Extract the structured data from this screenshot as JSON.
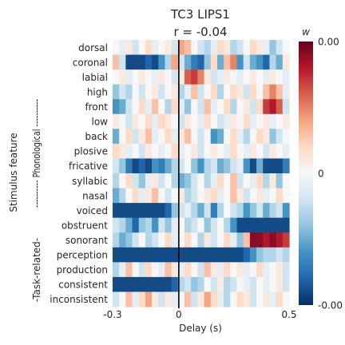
{
  "chart_data": {
    "type": "heatmap",
    "title": "TC3 LIPS1",
    "subtitle": "r = -0.04",
    "xlabel": "Delay (s)",
    "ylabel": "Stimulus feature",
    "group_labels": [
      {
        "label": "---------- Phonological ----------",
        "rows": [
          0,
          12
        ]
      },
      {
        "label": "-Task-related-",
        "rows": [
          13,
          16
        ]
      }
    ],
    "x_range": [
      -0.3,
      0.5
    ],
    "x_ticks": [
      {
        "value": -0.3,
        "label": "-0.3"
      },
      {
        "value": 0,
        "label": "0"
      },
      {
        "value": 0.5,
        "label": "0.5"
      }
    ],
    "vline_at": 0,
    "rows": [
      "dorsal",
      "coronal",
      "labial",
      "high",
      "front",
      "low",
      "back",
      "plosive",
      "fricative",
      "syllabic",
      "nasal",
      "voiced",
      "obstruent",
      "sonorant",
      "perception",
      "production",
      "consistent",
      "inconsistent"
    ],
    "columns": [
      "-0.30",
      "-0.27",
      "-0.24",
      "-0.21",
      "-0.18",
      "-0.15",
      "-0.12",
      "-0.09",
      "-0.06",
      "-0.03",
      "0.00",
      "0.03",
      "0.06",
      "0.09",
      "0.12",
      "0.15",
      "0.18",
      "0.21",
      "0.24",
      "0.27",
      "0.30",
      "0.33",
      "0.36",
      "0.39",
      "0.42",
      "0.45",
      "0.48"
    ],
    "values": [
      [
        0.0,
        -0.1,
        0.1,
        -0.2,
        0.0,
        0.2,
        -0.1,
        0.0,
        0.1,
        -0.2,
        0.4,
        0.3,
        0.0,
        -0.2,
        -0.3,
        -0.1,
        0.2,
        0.1,
        -0.3,
        -0.2,
        0.0,
        0.2,
        0.1,
        -0.1,
        -0.4,
        -0.2,
        0.0
      ],
      [
        0.3,
        -0.2,
        -0.9,
        -0.9,
        -0.9,
        -0.8,
        -0.9,
        -0.6,
        -0.3,
        0.4,
        -0.2,
        -0.5,
        -0.7,
        -0.8,
        -0.4,
        0.2,
        -0.5,
        0.3,
        0.5,
        -0.6,
        -0.2,
        -0.5,
        -0.6,
        -0.8,
        -0.3,
        -0.5,
        0.1
      ],
      [
        0.0,
        0.1,
        -0.1,
        0.0,
        0.1,
        0.0,
        -0.1,
        0.1,
        0.0,
        -0.2,
        0.1,
        0.6,
        0.7,
        0.5,
        0.1,
        -0.2,
        -0.1,
        0.1,
        0.0,
        -0.1,
        0.0,
        0.1,
        0.0,
        -0.1,
        0.1,
        0.0,
        -0.1
      ],
      [
        -0.4,
        -0.2,
        -0.3,
        0.0,
        -0.2,
        0.0,
        0.1,
        -0.2,
        0.0,
        0.1,
        -0.3,
        -0.1,
        0.3,
        -0.2,
        0.0,
        0.2,
        -0.3,
        0.0,
        0.2,
        0.1,
        -0.2,
        0.2,
        0.0,
        0.3,
        0.5,
        0.3,
        -0.1
      ],
      [
        -0.6,
        -0.5,
        -0.2,
        0.0,
        0.2,
        -0.1,
        0.3,
        0.0,
        -0.3,
        0.2,
        -0.1,
        -0.4,
        0.0,
        -0.2,
        0.3,
        -0.1,
        0.0,
        0.2,
        -0.3,
        0.0,
        0.1,
        -0.2,
        0.2,
        0.7,
        0.8,
        0.6,
        -0.2
      ],
      [
        0.1,
        0.0,
        -0.2,
        0.1,
        0.0,
        0.2,
        -0.1,
        0.2,
        0.1,
        0.0,
        -0.2,
        0.1,
        0.0,
        -0.1,
        0.2,
        0.0,
        -0.2,
        -0.1,
        0.1,
        0.0,
        0.2,
        -0.1,
        0.0,
        0.1,
        -0.1,
        0.0,
        0.1
      ],
      [
        -0.5,
        0.0,
        0.2,
        -0.2,
        0.1,
        0.3,
        -0.1,
        0.0,
        0.2,
        -0.1,
        0.1,
        0.3,
        0.0,
        -0.2,
        0.0,
        -0.6,
        -0.5,
        0.0,
        0.2,
        -0.1,
        -0.3,
        0.0,
        0.2,
        0.1,
        -0.4,
        -0.2,
        0.0
      ],
      [
        0.2,
        0.1,
        -0.1,
        0.0,
        -0.2,
        0.1,
        0.0,
        -0.1,
        0.0,
        0.2,
        -0.1,
        0.0,
        0.1,
        -0.2,
        0.0,
        0.1,
        0.0,
        -0.1,
        0.2,
        0.0,
        -0.1,
        0.1,
        0.0,
        -0.2,
        0.1,
        0.0,
        -0.1
      ],
      [
        -0.2,
        -0.4,
        -0.7,
        -0.9,
        -0.8,
        -0.9,
        -0.6,
        -0.7,
        -0.5,
        -0.3,
        -0.2,
        0.0,
        -0.4,
        -0.6,
        -0.3,
        -0.2,
        -0.5,
        -0.4,
        -0.2,
        -0.1,
        -0.6,
        -0.9,
        -0.5,
        -0.9,
        -0.9,
        -0.9,
        -0.7
      ],
      [
        -0.3,
        0.0,
        0.2,
        -0.2,
        -0.4,
        -0.1,
        0.1,
        -0.2,
        0.0,
        -0.3,
        -0.5,
        -0.4,
        -0.2,
        0.0,
        -0.3,
        -0.1,
        0.2,
        0.0,
        0.3,
        -0.2,
        0.0,
        -0.1,
        0.2,
        -0.3,
        0.1,
        -0.4,
        0.0
      ],
      [
        -0.5,
        -0.3,
        0.0,
        0.2,
        -0.1,
        0.1,
        0.3,
        0.0,
        -0.2,
        0.0,
        0.1,
        -0.3,
        -0.2,
        0.0,
        0.1,
        0.2,
        -0.1,
        0.0,
        0.3,
        0.1,
        -0.2,
        0.0,
        0.1,
        -0.1,
        0.0,
        0.2,
        0.0
      ],
      [
        -0.9,
        -0.9,
        -0.9,
        -0.9,
        -0.9,
        -0.9,
        -0.9,
        -0.9,
        -0.8,
        -0.4,
        -0.2,
        -0.1,
        -0.3,
        -0.5,
        -0.2,
        -0.7,
        -0.3,
        0.0,
        -0.2,
        -0.3,
        -0.6,
        -0.4,
        -0.2,
        -0.5,
        -0.3,
        -0.2,
        -0.6
      ],
      [
        -0.2,
        -0.3,
        -0.5,
        -0.8,
        -0.4,
        -0.3,
        -0.6,
        -0.2,
        -0.4,
        -0.1,
        0.0,
        -0.3,
        -0.2,
        0.0,
        -0.4,
        -0.2,
        0.0,
        -0.3,
        -0.6,
        -0.9,
        -0.9,
        -0.9,
        -0.9,
        -0.9,
        -0.9,
        -0.9,
        -0.9
      ],
      [
        -0.3,
        -0.5,
        -0.4,
        -0.2,
        0.0,
        -0.3,
        -0.2,
        0.0,
        0.2,
        -0.1,
        0.0,
        0.2,
        0.0,
        -0.3,
        0.1,
        -0.2,
        0.0,
        0.2,
        -0.1,
        -0.4,
        0.3,
        0.9,
        0.9,
        0.8,
        0.9,
        0.8,
        0.7
      ],
      [
        -0.9,
        -0.9,
        -0.9,
        -0.9,
        -0.9,
        -0.9,
        -0.9,
        -0.9,
        -0.9,
        -0.9,
        -0.9,
        -0.9,
        -0.9,
        -0.9,
        -0.9,
        -0.9,
        -0.9,
        -0.9,
        -0.9,
        -0.9,
        -0.8,
        -0.6,
        -0.4,
        -0.3,
        -0.3,
        -0.2,
        -0.3
      ],
      [
        -0.3,
        -0.1,
        0.3,
        0.0,
        -0.2,
        0.2,
        0.0,
        -0.1,
        0.3,
        0.1,
        -0.1,
        0.2,
        0.0,
        -0.2,
        0.3,
        0.1,
        -0.1,
        0.2,
        0.0,
        0.1,
        -0.1,
        0.0,
        0.2,
        -0.1,
        0.0,
        0.1,
        -0.2
      ],
      [
        -0.9,
        -0.9,
        -0.9,
        -0.9,
        -0.9,
        -0.9,
        -0.9,
        -0.9,
        -0.9,
        -0.8,
        -0.3,
        -0.2,
        -0.4,
        -0.3,
        0.0,
        -0.2,
        0.1,
        -0.3,
        -0.2,
        0.0,
        -0.1,
        -0.2,
        0.0,
        -0.1,
        0.0,
        0.1,
        -0.2
      ],
      [
        -0.2,
        0.0,
        0.3,
        -0.1,
        0.2,
        0.4,
        0.1,
        -0.2,
        0.1,
        -0.1,
        0.0,
        0.3,
        -0.2,
        0.1,
        0.4,
        0.2,
        -0.1,
        -0.3,
        0.0,
        0.2,
        0.1,
        -0.2,
        0.0,
        0.1,
        -0.1,
        0.2,
        0.0
      ]
    ],
    "colorbar": {
      "label": "w",
      "colormap": "RdBu_r",
      "range": [
        -1,
        1
      ],
      "ticks": [
        {
          "value": 1,
          "label": "0.00"
        },
        {
          "value": 0,
          "label": "0"
        },
        {
          "value": -1,
          "label": "-0.00"
        }
      ],
      "stops": [
        "#67001f",
        "#b2182b",
        "#d6604d",
        "#f4a582",
        "#fddbc7",
        "#f7f7f7",
        "#d1e5f0",
        "#92c5de",
        "#4393c3",
        "#2166ac",
        "#053061"
      ]
    }
  }
}
